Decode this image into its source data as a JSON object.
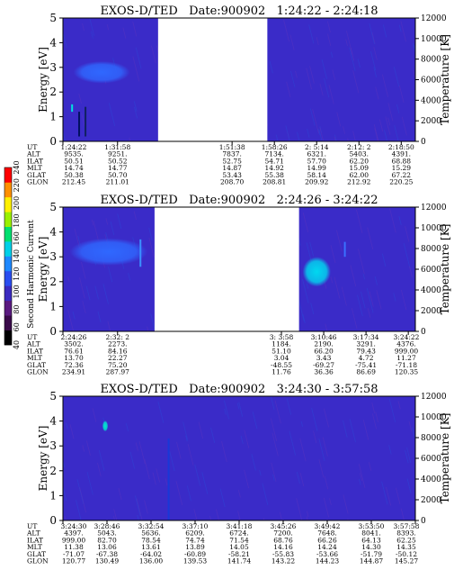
{
  "colorbar": {
    "label": "Second Harmonic Current",
    "ticks": [
      "40",
      "60",
      "80",
      "100",
      "120",
      "140",
      "160",
      "180",
      "200",
      "220",
      "240"
    ],
    "colors": [
      "#000000",
      "#3a0a4a",
      "#5a1a80",
      "#3b2bc0",
      "#2a4ef0",
      "#1e88ff",
      "#00d0e8",
      "#00e070",
      "#9af000",
      "#fff000",
      "#ff9000",
      "#ff0000"
    ]
  },
  "chart_data": [
    {
      "type": "heatmap",
      "title": "EXOS-D/TED   Date:900902   1:24:22 - 2:24:18",
      "ylabel": "Energy [eV]",
      "y2label": "Temperature [K]",
      "ylim": [
        0,
        5
      ],
      "y2lim": [
        0,
        12000
      ],
      "yticks": [
        "0",
        "1",
        "2",
        "3",
        "4",
        "5"
      ],
      "y2ticks": [
        "0",
        "2000",
        "4000",
        "6000",
        "8000",
        "10000",
        "12000"
      ],
      "data_gap": [
        0.27,
        0.58
      ],
      "features": [
        {
          "kind": "blob",
          "x": 0.11,
          "y": 2.8,
          "rx": 0.08,
          "ry": 0.45,
          "color": "#2f68ff"
        },
        {
          "kind": "spike",
          "x": 0.026,
          "y0": 1.2,
          "y1": 1.5,
          "color": "#00e0e0"
        },
        {
          "kind": "spike",
          "x": 0.046,
          "y0": 0.2,
          "y1": 1.2,
          "color": "#001060"
        },
        {
          "kind": "spike",
          "x": 0.064,
          "y0": 0.2,
          "y1": 1.4,
          "color": "#102060"
        }
      ],
      "table_labels": [
        "UT",
        "ALT",
        "ILAT",
        "MLT",
        "GLAT",
        "GLON"
      ],
      "columns": [
        {
          "pos": 0.0,
          "vals": [
            "1:24:22",
            "9535.",
            "50.51",
            "14.74",
            "50.38",
            "212.45"
          ]
        },
        {
          "pos": 0.155,
          "vals": [
            "1:31:58",
            "9251.",
            "50.52",
            "14.77",
            "50.70",
            "211.01"
          ]
        },
        {
          "pos": 0.48,
          "vals": [
            "1:51:38",
            "7837.",
            "52.75",
            "14.87",
            "53.43",
            "208.70"
          ]
        },
        {
          "pos": 0.6,
          "vals": [
            "1:58:26",
            "7134.",
            "54.71",
            "14.92",
            "55.38",
            "208.81"
          ]
        },
        {
          "pos": 0.72,
          "vals": [
            "2: 5:14",
            "6321.",
            "57.70",
            "14.99",
            "58.14",
            "209.92"
          ]
        },
        {
          "pos": 0.84,
          "vals": [
            "2:12: 2",
            "5403.",
            "62.20",
            "15.09",
            "62.00",
            "212.92"
          ]
        },
        {
          "pos": 0.96,
          "vals": [
            "2:18:50",
            "4391.",
            "68.88",
            "15.29",
            "67.22",
            "220.25"
          ]
        }
      ]
    },
    {
      "type": "heatmap",
      "title": "EXOS-D/TED   Date:900902   2:24:26 - 3:24:22",
      "ylabel": "Energy [eV]",
      "y2label": "Temperature [K]",
      "ylim": [
        0,
        5
      ],
      "y2lim": [
        0,
        12000
      ],
      "yticks": [
        "0",
        "1",
        "2",
        "3",
        "4",
        "5"
      ],
      "y2ticks": [
        "0",
        "2000",
        "4000",
        "6000",
        "8000",
        "10000",
        "12000"
      ],
      "data_gap": [
        0.26,
        0.67
      ],
      "features": [
        {
          "kind": "blob",
          "x": 0.13,
          "y": 3.2,
          "rx": 0.11,
          "ry": 0.55,
          "color": "#2f68ff"
        },
        {
          "kind": "blob",
          "x": 0.72,
          "y": 2.4,
          "rx": 0.04,
          "ry": 0.6,
          "color": "#00d8f0"
        },
        {
          "kind": "spike",
          "x": 0.22,
          "y0": 2.6,
          "y1": 3.7,
          "color": "#3a90ff"
        },
        {
          "kind": "spike",
          "x": 0.8,
          "y0": 3.0,
          "y1": 3.6,
          "color": "#3a70ff"
        }
      ],
      "table_labels": [
        "UT",
        "ALT",
        "ILAT",
        "MLT",
        "GLAT",
        "GLON"
      ],
      "columns": [
        {
          "pos": 0.0,
          "vals": [
            "2:24:26",
            "3502.",
            "76.61",
            "13.70",
            "72.36",
            "234.91"
          ]
        },
        {
          "pos": 0.155,
          "vals": [
            "2:32: 2",
            "2273.",
            "84.16",
            "22.27",
            "75.20",
            "287.97"
          ]
        },
        {
          "pos": 0.62,
          "vals": [
            "3: 3:58",
            "1184.",
            "51.10",
            "3.04",
            "-48.55",
            "11.76"
          ]
        },
        {
          "pos": 0.74,
          "vals": [
            "3:10:46",
            "2190.",
            "66.20",
            "3.43",
            "-69.27",
            "36.36"
          ]
        },
        {
          "pos": 0.86,
          "vals": [
            "3:17:34",
            "3291.",
            "79.43",
            "4.72",
            "-75.41",
            "86.69"
          ]
        },
        {
          "pos": 0.98,
          "vals": [
            "3:24:22",
            "4376.",
            "999.00",
            "11.27",
            "-71.18",
            "120.35"
          ]
        }
      ]
    },
    {
      "type": "heatmap",
      "title": "EXOS-D/TED   Date:900902   3:24:30 - 3:57:58",
      "ylabel": "Energy [eV]",
      "y2label": "Temperature [K]",
      "ylim": [
        0,
        5
      ],
      "y2lim": [
        0,
        12000
      ],
      "yticks": [
        "0",
        "1",
        "2",
        "3",
        "4",
        "5"
      ],
      "y2ticks": [
        "0",
        "2000",
        "4000",
        "6000",
        "8000",
        "10000",
        "12000"
      ],
      "data_gap": null,
      "features": [
        {
          "kind": "blob",
          "x": 0.12,
          "y": 3.8,
          "rx": 0.008,
          "ry": 0.22,
          "color": "#00e8d0"
        },
        {
          "kind": "spike",
          "x": 0.3,
          "y0": 0.0,
          "y1": 3.3,
          "color": "#1838d8"
        }
      ],
      "table_labels": [
        "UT",
        "ALT",
        "ILAT",
        "MLT",
        "GLAT",
        "GLON"
      ],
      "columns": [
        {
          "pos": 0.0,
          "vals": [
            "3:24:30",
            "4397.",
            "999.00",
            "11.38",
            "-71.07",
            "120.77"
          ]
        },
        {
          "pos": 0.125,
          "vals": [
            "3:28:46",
            "5043.",
            "82.70",
            "13.06",
            "-67.38",
            "130.49"
          ]
        },
        {
          "pos": 0.25,
          "vals": [
            "3:32:54",
            "5636.",
            "78.54",
            "13.61",
            "-64.02",
            "136.00"
          ]
        },
        {
          "pos": 0.375,
          "vals": [
            "3:37:10",
            "6209.",
            "74.74",
            "13.89",
            "-60.89",
            "139.53"
          ]
        },
        {
          "pos": 0.5,
          "vals": [
            "3:41:18",
            "6724.",
            "71.54",
            "14.05",
            "-58.21",
            "141.74"
          ]
        },
        {
          "pos": 0.625,
          "vals": [
            "3:45:26",
            "7200.",
            "68.76",
            "14.16",
            "-55.83",
            "143.22"
          ]
        },
        {
          "pos": 0.75,
          "vals": [
            "3:49:42",
            "7648.",
            "66.26",
            "14.24",
            "-53.66",
            "144.23"
          ]
        },
        {
          "pos": 0.875,
          "vals": [
            "3:53:50",
            "8041.",
            "64.13",
            "14.30",
            "-51.79",
            "144.87"
          ]
        },
        {
          "pos": 1.0,
          "vals": [
            "3:57:58",
            "8393.",
            "62.25",
            "14.35",
            "-50.12",
            "145.27"
          ]
        }
      ]
    }
  ]
}
